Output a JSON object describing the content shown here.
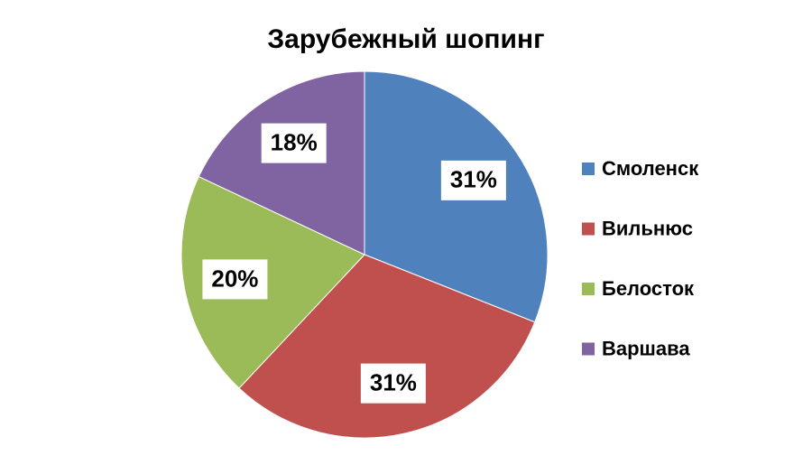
{
  "chart_data": {
    "type": "pie",
    "title": "Зарубежный шопинг",
    "categories": [
      "Смоленск",
      "Вильнюс",
      "Белосток",
      "Варшава"
    ],
    "values": [
      31,
      31,
      20,
      18
    ],
    "value_labels": [
      "31%",
      "31%",
      "20%",
      "18%"
    ],
    "colors": [
      "#4f81bd",
      "#c0504d",
      "#9bbb59",
      "#8064a2"
    ],
    "legend": "right"
  }
}
